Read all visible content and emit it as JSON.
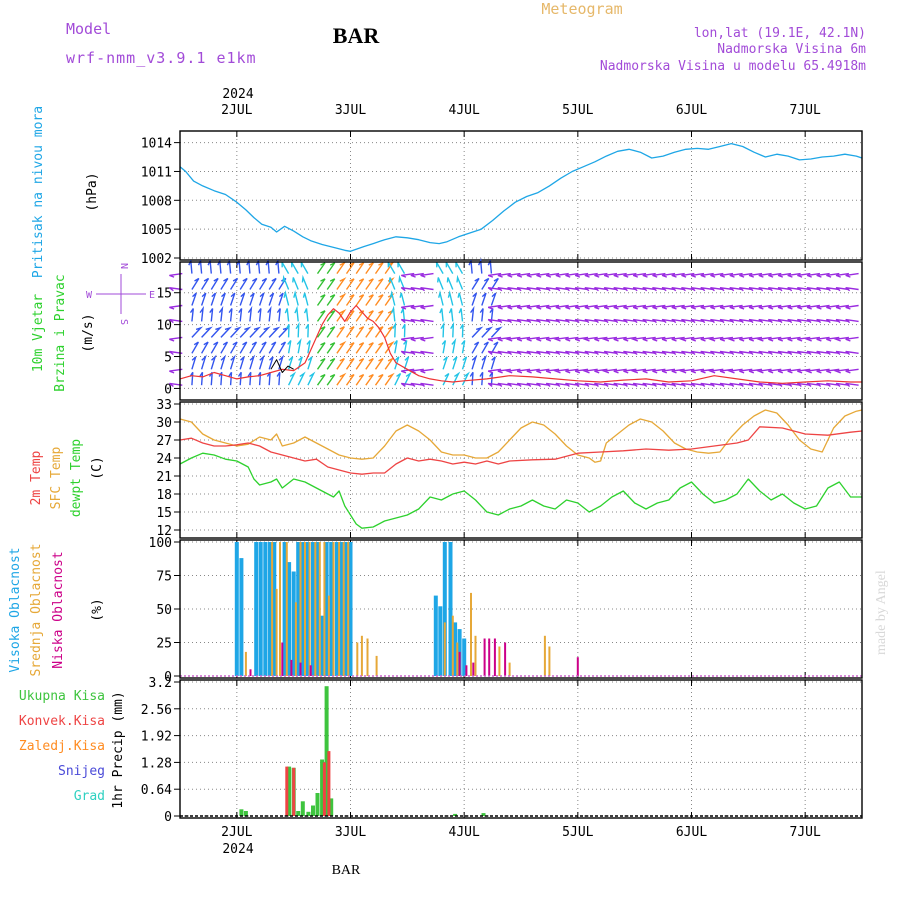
{
  "header": {
    "model_label": "Model",
    "model_name": "wrf-nmm_v3.9.1  e1km",
    "station_title": "BAR",
    "meteogram_label": "Meteogram",
    "lonlat": "lon,lat (19.1E, 42.1N)",
    "height": "Nadmorska Visina 6m",
    "model_height": "Nadmorska Visina u modelu 65.4918m",
    "watermark": "made by Angel",
    "bottom_station": "BAR"
  },
  "x_axis": {
    "year": "2024",
    "days": [
      "2JUL",
      "3JUL",
      "4JUL",
      "5JUL",
      "6JUL",
      "7JUL"
    ],
    "day_positions": [
      2,
      3,
      4,
      5,
      6,
      7
    ],
    "range": [
      1.5,
      7.5
    ]
  },
  "colors": {
    "pressure": "#1ea6e6",
    "temp2m": "#ee4444",
    "sfc": "#e6a838",
    "dewpt": "#2ed12e",
    "high_cloud": "#1ea6e6",
    "mid_cloud": "#e6a838",
    "low_cloud": "#cc0088",
    "total_precip": "#3ec43e",
    "conv_precip": "#ee4444",
    "frozen": "#ff8c22",
    "snow": "#4a4ad8",
    "hail": "#2ed1c1",
    "wind_purple": "#9a2be0",
    "wind_blue": "#3355ee",
    "wind_cyan": "#22c4e6",
    "wind_green": "#33c033",
    "wind_orange": "#ff8c22",
    "wind_speed": "#ee3333",
    "gust": "#000000"
  },
  "chart_data": [
    {
      "type": "line",
      "panel": "pressure",
      "ylabel_lines": [
        "Pritisak na nivou mora"
      ],
      "unit": "(hPa)",
      "ylim": [
        1002,
        1015
      ],
      "yticks": [
        1002,
        1005,
        1008,
        1011,
        1014
      ],
      "grid": true,
      "series": [
        {
          "x": [
            1.5,
            1.55,
            1.62,
            1.7,
            1.8,
            1.9,
            2.0,
            2.08,
            2.15,
            2.22,
            2.3,
            2.35,
            2.42,
            2.5,
            2.58,
            2.65,
            2.75,
            2.85,
            2.95,
            3.0,
            3.05,
            3.12,
            3.2,
            3.3,
            3.4,
            3.5,
            3.6,
            3.7,
            3.78,
            3.85,
            3.95,
            4.05,
            4.15,
            4.25,
            4.35,
            4.45,
            4.55,
            4.65,
            4.75,
            4.85,
            4.95,
            5.05,
            5.15,
            5.25,
            5.35,
            5.45,
            5.55,
            5.65,
            5.75,
            5.85,
            5.95,
            6.05,
            6.15,
            6.25,
            6.35,
            6.45,
            6.55,
            6.65,
            6.75,
            6.85,
            6.95,
            7.05,
            7.15,
            7.25,
            7.35,
            7.45,
            7.5
          ],
          "values": [
            1011.5,
            1011.0,
            1010.0,
            1009.5,
            1009.0,
            1008.6,
            1007.8,
            1007.0,
            1006.2,
            1005.5,
            1005.2,
            1004.7,
            1005.3,
            1004.8,
            1004.2,
            1003.8,
            1003.4,
            1003.1,
            1002.8,
            1002.7,
            1002.9,
            1003.2,
            1003.5,
            1003.9,
            1004.2,
            1004.1,
            1003.9,
            1003.6,
            1003.5,
            1003.7,
            1004.2,
            1004.6,
            1005.0,
            1005.9,
            1006.9,
            1007.8,
            1008.4,
            1008.8,
            1009.5,
            1010.3,
            1011.0,
            1011.5,
            1012.0,
            1012.6,
            1013.1,
            1013.3,
            1013.0,
            1012.4,
            1012.6,
            1013.0,
            1013.3,
            1013.4,
            1013.3,
            1013.6,
            1013.9,
            1013.6,
            1013.0,
            1012.5,
            1012.8,
            1012.6,
            1012.2,
            1012.3,
            1012.5,
            1012.6,
            1012.8,
            1012.6,
            1012.4
          ]
        }
      ]
    },
    {
      "type": "line",
      "panel": "wind",
      "ylabel_lines": [
        "10m Vjetar",
        "Brzina i Pravac"
      ],
      "unit": "(m/s)",
      "compass_left": "W",
      "compass_right": "E",
      "compass_top": "N",
      "compass_bottom": "S",
      "ylim": [
        -1.5,
        19.5
      ],
      "yticks": [
        0,
        5,
        10,
        15
      ],
      "grid": true,
      "series": [
        {
          "name": "speed",
          "x": [
            1.5,
            1.6,
            1.7,
            1.8,
            1.9,
            2.0,
            2.1,
            2.2,
            2.3,
            2.4,
            2.5,
            2.6,
            2.65,
            2.7,
            2.75,
            2.8,
            2.85,
            2.9,
            2.95,
            3.0,
            3.05,
            3.1,
            3.15,
            3.2,
            3.25,
            3.3,
            3.35,
            3.4,
            3.5,
            3.6,
            3.7,
            3.8,
            3.9,
            4.0,
            4.2,
            4.4,
            4.6,
            4.8,
            5.0,
            5.2,
            5.4,
            5.6,
            5.8,
            6.0,
            6.2,
            6.4,
            6.6,
            6.8,
            7.0,
            7.2,
            7.4,
            7.5
          ],
          "values": [
            1.5,
            2.0,
            1.8,
            2.5,
            2.0,
            1.5,
            1.8,
            2.0,
            2.5,
            3.0,
            2.8,
            4.0,
            6.0,
            8.0,
            10.0,
            11.5,
            12.5,
            11.8,
            10.5,
            12.0,
            13.0,
            12.0,
            11.0,
            10.5,
            9.5,
            8.0,
            5.5,
            4.0,
            3.0,
            2.0,
            1.5,
            1.2,
            1.0,
            1.2,
            1.5,
            2.0,
            1.8,
            1.5,
            1.2,
            1.0,
            1.3,
            1.5,
            1.0,
            1.2,
            2.0,
            1.5,
            1.0,
            0.8,
            1.0,
            1.2,
            1.0,
            1.0
          ]
        },
        {
          "name": "gust",
          "x": [
            2.3,
            2.35,
            2.4,
            2.45,
            2.5
          ],
          "values": [
            3.0,
            4.5,
            2.5,
            3.5,
            3.0
          ]
        }
      ]
    },
    {
      "type": "line",
      "panel": "temperature",
      "ylabel_lines": [
        "2m Temp",
        "SFC Temp",
        "dewpt Temp"
      ],
      "unit": "(C)",
      "ylim": [
        11,
        33
      ],
      "yticks": [
        12,
        15,
        18,
        21,
        24,
        27,
        30,
        33
      ],
      "grid": true,
      "series": [
        {
          "name": "2m Temp",
          "x": [
            1.5,
            1.6,
            1.7,
            1.8,
            1.9,
            2.0,
            2.1,
            2.2,
            2.3,
            2.4,
            2.5,
            2.6,
            2.7,
            2.8,
            2.9,
            3.0,
            3.1,
            3.2,
            3.3,
            3.4,
            3.5,
            3.6,
            3.7,
            3.8,
            3.9,
            4.0,
            4.1,
            4.2,
            4.3,
            4.4,
            4.6,
            4.8,
            5.0,
            5.2,
            5.4,
            5.6,
            5.8,
            6.0,
            6.2,
            6.4,
            6.5,
            6.6,
            6.8,
            7.0,
            7.2,
            7.4,
            7.5
          ],
          "values": [
            27.0,
            27.3,
            26.5,
            26.0,
            26.0,
            26.2,
            26.5,
            26.0,
            25.0,
            24.5,
            24.0,
            23.5,
            23.8,
            22.5,
            22.0,
            21.5,
            21.3,
            21.5,
            21.5,
            23.0,
            24.0,
            23.5,
            23.8,
            23.5,
            23.0,
            23.3,
            23.0,
            23.5,
            23.0,
            23.5,
            23.7,
            23.8,
            24.8,
            25.0,
            25.2,
            25.5,
            25.3,
            25.5,
            26.0,
            26.5,
            27.0,
            29.2,
            29.0,
            28.0,
            27.8,
            28.3,
            28.5
          ]
        },
        {
          "name": "SFC Temp",
          "x": [
            1.5,
            1.6,
            1.7,
            1.8,
            1.9,
            2.0,
            2.1,
            2.2,
            2.3,
            2.35,
            2.4,
            2.5,
            2.6,
            2.7,
            2.8,
            2.9,
            3.0,
            3.1,
            3.2,
            3.3,
            3.4,
            3.5,
            3.6,
            3.7,
            3.8,
            3.9,
            4.0,
            4.1,
            4.2,
            4.3,
            4.4,
            4.5,
            4.6,
            4.7,
            4.8,
            4.9,
            5.0,
            5.1,
            5.15,
            5.2,
            5.25,
            5.35,
            5.45,
            5.55,
            5.65,
            5.75,
            5.85,
            5.95,
            6.05,
            6.15,
            6.25,
            6.35,
            6.45,
            6.55,
            6.65,
            6.75,
            6.85,
            6.95,
            7.05,
            7.15,
            7.25,
            7.35,
            7.45,
            7.5
          ],
          "values": [
            30.5,
            30.0,
            28.0,
            27.0,
            26.5,
            26.0,
            26.3,
            27.5,
            27.0,
            28.0,
            26.0,
            26.5,
            27.5,
            26.5,
            25.5,
            24.5,
            24.0,
            23.8,
            24.0,
            26.0,
            28.5,
            29.5,
            28.5,
            27.0,
            25.0,
            24.5,
            24.5,
            24.0,
            24.0,
            25.0,
            27.0,
            29.0,
            30.0,
            29.5,
            28.0,
            26.0,
            24.5,
            24.0,
            23.3,
            23.5,
            26.5,
            28.0,
            29.5,
            30.5,
            30.0,
            28.5,
            26.5,
            25.5,
            25.0,
            24.8,
            25.0,
            27.5,
            29.5,
            31.0,
            32.0,
            31.5,
            29.5,
            27.0,
            25.5,
            25.0,
            29.0,
            31.0,
            31.8,
            32.0
          ]
        },
        {
          "name": "dewpt Temp",
          "x": [
            1.5,
            1.6,
            1.7,
            1.8,
            1.9,
            2.0,
            2.1,
            2.15,
            2.2,
            2.3,
            2.35,
            2.4,
            2.5,
            2.6,
            2.7,
            2.8,
            2.85,
            2.9,
            2.95,
            3.0,
            3.05,
            3.1,
            3.2,
            3.3,
            3.4,
            3.5,
            3.6,
            3.7,
            3.8,
            3.9,
            4.0,
            4.1,
            4.2,
            4.3,
            4.4,
            4.5,
            4.6,
            4.7,
            4.8,
            4.9,
            5.0,
            5.1,
            5.2,
            5.3,
            5.4,
            5.5,
            5.6,
            5.7,
            5.8,
            5.9,
            6.0,
            6.1,
            6.2,
            6.3,
            6.4,
            6.5,
            6.6,
            6.7,
            6.8,
            6.9,
            7.0,
            7.1,
            7.2,
            7.3,
            7.4,
            7.5
          ],
          "values": [
            23.0,
            24.0,
            24.8,
            24.5,
            23.8,
            23.5,
            22.5,
            20.5,
            19.5,
            20.0,
            20.5,
            19.0,
            20.5,
            20.0,
            19.0,
            18.0,
            17.5,
            18.5,
            16.0,
            14.5,
            13.0,
            12.3,
            12.5,
            13.5,
            14.0,
            14.5,
            15.5,
            17.5,
            17.0,
            18.0,
            18.5,
            17.0,
            15.0,
            14.5,
            15.5,
            16.0,
            17.0,
            16.0,
            15.5,
            17.0,
            16.5,
            15.0,
            16.0,
            17.5,
            18.5,
            16.5,
            15.5,
            16.5,
            17.0,
            19.0,
            20.0,
            18.0,
            16.5,
            17.0,
            18.0,
            20.5,
            18.5,
            17.0,
            18.0,
            16.5,
            15.5,
            16.0,
            19.0,
            20.0,
            17.5,
            17.5
          ]
        }
      ]
    },
    {
      "type": "bar",
      "panel": "clouds",
      "ylabel_lines": [
        "Visoka Oblacnost",
        "Srednja Oblacnost",
        "Niska Oblacnost"
      ],
      "unit": "(%)",
      "ylim": [
        0,
        100
      ],
      "yticks": [
        0,
        25,
        50,
        75,
        100
      ],
      "grid": true,
      "series": [
        {
          "name": "Visoka Oblacnost",
          "x": [
            2.0,
            2.04,
            2.17,
            2.21,
            2.25,
            2.29,
            2.33,
            2.42,
            2.46,
            2.5,
            2.54,
            2.58,
            2.62,
            2.67,
            2.71,
            2.75,
            2.79,
            2.83,
            2.88,
            2.92,
            2.96,
            3.0,
            3.75,
            3.79,
            3.83,
            3.88,
            3.92,
            3.96,
            4.0
          ],
          "values": [
            100,
            88,
            100,
            100,
            100,
            100,
            100,
            100,
            85,
            78,
            100,
            100,
            100,
            100,
            100,
            45,
            100,
            100,
            100,
            100,
            100,
            100,
            60,
            52,
            100,
            100,
            40,
            35,
            28
          ]
        },
        {
          "name": "Srednja Oblacnost",
          "x": [
            2.08,
            2.31,
            2.35,
            2.38,
            2.44,
            2.52,
            2.56,
            2.6,
            2.64,
            2.69,
            2.73,
            2.77,
            2.81,
            2.85,
            2.9,
            2.94,
            2.98,
            3.06,
            3.1,
            3.15,
            3.23,
            3.83,
            3.9,
            3.94,
            4.06,
            4.1,
            4.31,
            4.4,
            4.71,
            4.75
          ],
          "values": [
            18,
            100,
            65,
            100,
            100,
            55,
            100,
            100,
            100,
            100,
            100,
            100,
            60,
            100,
            100,
            100,
            100,
            25,
            30,
            28,
            15,
            40,
            45,
            25,
            62,
            30,
            22,
            10,
            30,
            22
          ]
        },
        {
          "name": "Niska Oblacnost",
          "x": [
            2.12,
            2.4,
            2.48,
            2.56,
            2.65,
            3.96,
            4.02,
            4.08,
            4.18,
            4.22,
            4.27,
            4.36,
            5.0
          ],
          "values": [
            5,
            25,
            12,
            10,
            8,
            18,
            8,
            10,
            28,
            28,
            28,
            25,
            14
          ]
        }
      ]
    },
    {
      "type": "bar",
      "panel": "precip",
      "ylabel_lines": [
        "Ukupna Kisa",
        "Konvek.Kisa",
        "Zaledj.Kisa",
        "Snijeg",
        "Grad"
      ],
      "unit": "1hr Precip (mm)",
      "ylim": [
        0,
        3.2
      ],
      "yticks": [
        0,
        0.64,
        1.28,
        1.92,
        2.56,
        3.2
      ],
      "ytick_labels": [
        "0",
        "0.64",
        "1.28",
        "1.92",
        "2.56",
        "3.2"
      ],
      "grid": true,
      "series": [
        {
          "name": "Ukupna Kisa",
          "x": [
            2.04,
            2.08,
            2.46,
            2.5,
            2.54,
            2.58,
            2.63,
            2.67,
            2.71,
            2.75,
            2.79,
            2.83,
            3.92,
            4.17
          ],
          "values": [
            0.16,
            0.12,
            1.18,
            1.15,
            0.12,
            0.35,
            0.1,
            0.25,
            0.55,
            1.35,
            3.1,
            0.42,
            0.05,
            0.07
          ]
        },
        {
          "name": "Konvek.Kisa",
          "x": [
            2.44,
            2.5,
            2.77,
            2.81
          ],
          "values": [
            1.18,
            1.15,
            1.28,
            1.55
          ]
        }
      ]
    }
  ]
}
